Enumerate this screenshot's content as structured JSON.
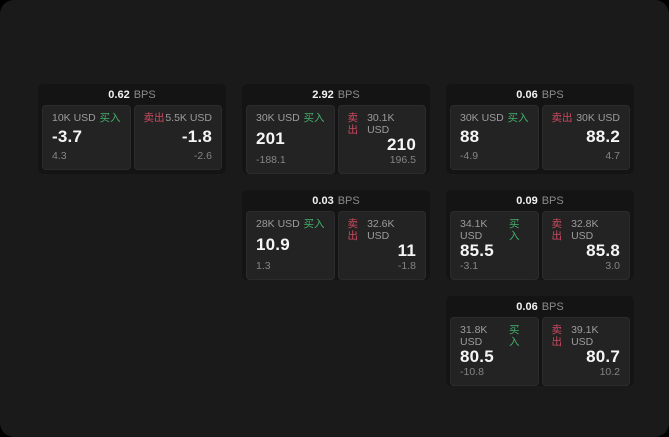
{
  "labels": {
    "bps_unit": "BPS",
    "buy": "买入",
    "sell": "卖出"
  },
  "colors": {
    "page_bg": "#1a1a1a",
    "card_bg": "#141414",
    "panel_bg": "#232324",
    "buy_green": "#43b06a",
    "sell_red": "#cb4a5e"
  },
  "cards": [
    {
      "bps": "0.62",
      "buy": {
        "amount": "10K USD",
        "price": "-3.7",
        "delta": "4.3"
      },
      "sell": {
        "amount": "5.5K USD",
        "price": "-1.8",
        "delta": "-2.6"
      }
    },
    {
      "bps": "2.92",
      "buy": {
        "amount": "30K USD",
        "price": "201",
        "delta": "-188.1"
      },
      "sell": {
        "amount": "30.1K USD",
        "price": "210",
        "delta": "196.5"
      }
    },
    {
      "bps": "0.06",
      "buy": {
        "amount": "30K USD",
        "price": "88",
        "delta": "-4.9"
      },
      "sell": {
        "amount": "30K USD",
        "price": "88.2",
        "delta": "4.7"
      }
    },
    {
      "bps": "0.03",
      "buy": {
        "amount": "28K USD",
        "price": "10.9",
        "delta": "1.3"
      },
      "sell": {
        "amount": "32.6K USD",
        "price": "11",
        "delta": "-1.8"
      }
    },
    {
      "bps": "0.09",
      "buy": {
        "amount": "34.1K USD",
        "price": "85.5",
        "delta": "-3.1"
      },
      "sell": {
        "amount": "32.8K USD",
        "price": "85.8",
        "delta": "3.0"
      }
    },
    {
      "bps": "0.06",
      "buy": {
        "amount": "31.8K USD",
        "price": "80.5",
        "delta": "-10.8"
      },
      "sell": {
        "amount": "39.1K USD",
        "price": "80.7",
        "delta": "10.2"
      }
    }
  ]
}
